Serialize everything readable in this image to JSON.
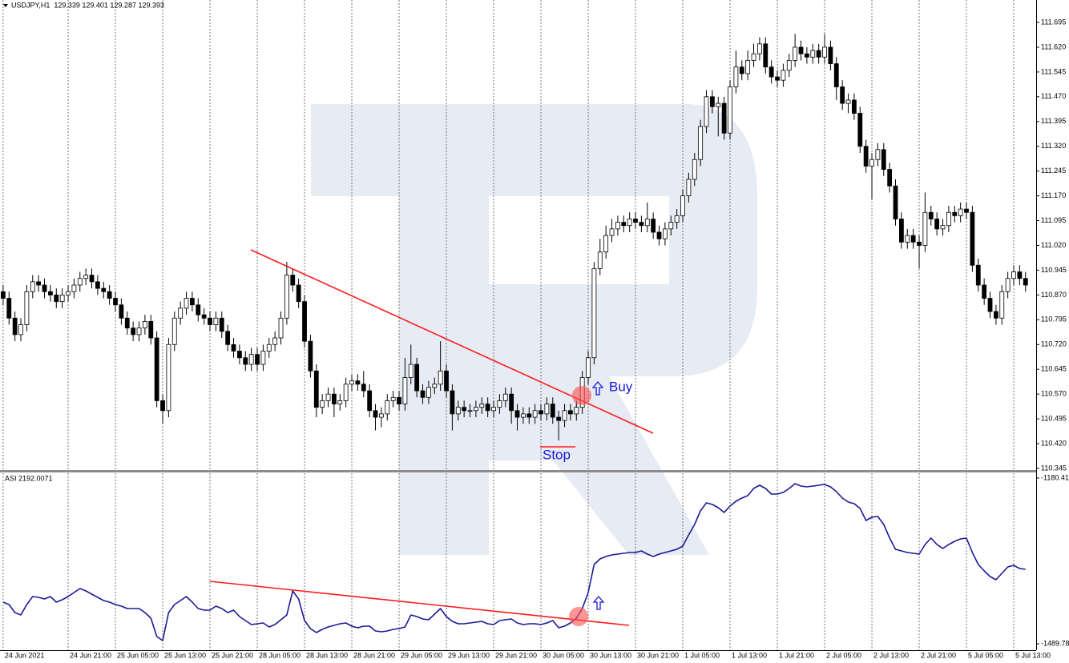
{
  "chart_data": [
    {
      "type": "candlestick",
      "title": "USDJPY,H1  129.339 129.401 129.287 129.393",
      "annotations": [
        "Buy",
        "Stop"
      ],
      "up_color": "#ffffff",
      "down_color": "#000000",
      "grid": true,
      "ylim": [
        110.345,
        111.695
      ],
      "yticks": [
        111.695,
        {
          "value": 111.62,
          "label": "111.620"
        },
        111.545,
        {
          "value": 111.47,
          "label": "111.470"
        },
        111.395,
        {
          "value": 111.32,
          "label": "111.320"
        },
        111.245,
        {
          "value": 111.17,
          "label": "111.170"
        },
        111.095,
        {
          "value": 111.02,
          "label": "111.020"
        },
        110.945,
        {
          "value": 110.87,
          "label": "110.870"
        },
        110.795,
        {
          "value": 110.72,
          "label": "110.720"
        },
        110.645,
        {
          "value": 110.57,
          "label": "110.570"
        },
        110.495,
        {
          "value": 110.42,
          "label": "110.420"
        },
        110.345
      ],
      "categories": [
        "24 Jun 2021",
        null,
        null,
        null,
        null,
        null,
        null,
        null,
        null,
        null,
        null,
        "24 Jun 21:00",
        null,
        null,
        null,
        null,
        null,
        null,
        null,
        "25 Jun 05:00",
        null,
        null,
        null,
        null,
        null,
        null,
        null,
        "25 Jun 13:00",
        null,
        null,
        null,
        null,
        null,
        null,
        null,
        "25 Jun 21:00",
        null,
        null,
        null,
        null,
        null,
        null,
        null,
        "28 Jun 05:00",
        null,
        null,
        null,
        null,
        null,
        null,
        null,
        "28 Jun 13:00",
        null,
        null,
        null,
        null,
        null,
        null,
        null,
        "28 Jun 21:00",
        null,
        null,
        null,
        null,
        null,
        null,
        null,
        "29 Jun 05:00",
        null,
        null,
        null,
        null,
        null,
        null,
        null,
        "29 Jun 13:00",
        null,
        null,
        null,
        null,
        null,
        null,
        null,
        "29 Jun 21:00",
        null,
        null,
        null,
        null,
        null,
        null,
        null,
        "30 Jun 05:00",
        null,
        null,
        null,
        null,
        null,
        null,
        null,
        "30 Jun 13:00",
        null,
        null,
        null,
        null,
        null,
        null,
        null,
        "30 Jun 21:00",
        null,
        null,
        null,
        null,
        null,
        null,
        null,
        "1 Jul 05:00",
        null,
        null,
        null,
        null,
        null,
        null,
        null,
        "1 Jul 13:00",
        null,
        null,
        null,
        null,
        null,
        null,
        null,
        "1 Jul 21:00",
        null,
        null,
        null,
        null,
        null,
        null,
        null,
        "2 Jul 05:00",
        null,
        null,
        null,
        null,
        null,
        null,
        null,
        "2 Jul 13:00",
        null,
        null,
        null,
        null,
        null,
        null,
        null,
        "2 Jul 21:00",
        null,
        null,
        null,
        null,
        null,
        null,
        null,
        "5 Jul 05:00",
        null,
        null,
        null,
        null,
        null,
        null,
        null,
        "5 Jul 13:00",
        null,
        null
      ],
      "open": [
        110.88,
        110.86,
        110.8,
        110.75,
        110.78,
        110.88,
        110.91,
        110.9,
        110.88,
        110.87,
        110.85,
        110.87,
        110.88,
        110.9,
        110.92,
        110.93,
        110.91,
        110.89,
        110.88,
        110.86,
        110.84,
        110.8,
        110.77,
        110.75,
        110.77,
        110.79,
        110.74,
        110.55,
        110.52,
        110.72,
        110.8,
        110.83,
        110.86,
        110.84,
        110.81,
        110.8,
        110.78,
        110.8,
        110.76,
        110.72,
        110.7,
        110.68,
        110.66,
        110.69,
        110.66,
        110.7,
        110.72,
        110.74,
        110.8,
        110.93,
        110.9,
        110.85,
        110.73,
        110.64,
        110.53,
        110.55,
        110.57,
        110.54,
        110.55,
        110.6,
        110.61,
        110.6,
        110.58,
        110.52,
        110.5,
        110.51,
        110.55,
        110.56,
        110.54,
        110.62,
        110.66,
        110.58,
        110.56,
        110.59,
        110.6,
        110.64,
        110.58,
        110.51,
        110.53,
        110.52,
        110.52,
        110.53,
        110.54,
        110.52,
        110.53,
        110.55,
        110.57,
        110.52,
        110.5,
        110.51,
        110.5,
        110.52,
        110.51,
        110.54,
        110.5,
        110.49,
        110.52,
        110.51,
        110.53,
        110.62,
        110.68,
        110.95,
        111.0,
        111.05,
        111.07,
        111.09,
        111.08,
        111.1,
        111.09,
        111.08,
        111.1,
        111.06,
        111.04,
        111.07,
        111.09,
        111.11,
        111.17,
        111.22,
        111.28,
        111.38,
        111.47,
        111.44,
        111.45,
        111.36,
        111.5,
        111.56,
        111.54,
        111.58,
        111.6,
        111.63,
        111.56,
        111.53,
        111.52,
        111.55,
        111.58,
        111.62,
        111.6,
        111.59,
        111.61,
        111.59,
        111.62,
        111.57,
        111.5,
        111.45,
        111.46,
        111.42,
        111.32,
        111.26,
        111.28,
        111.31,
        111.25,
        111.2,
        111.1,
        111.03,
        111.05,
        111.03,
        111.02,
        111.12,
        111.1,
        111.07,
        111.08,
        111.12,
        111.11,
        111.13,
        111.12,
        110.96,
        110.9,
        110.86,
        110.82,
        110.8,
        110.88,
        110.92,
        110.94,
        110.92
      ],
      "high": [
        110.9,
        110.88,
        110.82,
        110.8,
        110.9,
        110.93,
        110.93,
        110.92,
        110.9,
        110.89,
        110.89,
        110.9,
        110.92,
        110.94,
        110.95,
        110.95,
        110.93,
        110.91,
        110.9,
        110.88,
        110.86,
        110.82,
        110.79,
        110.79,
        110.81,
        110.81,
        110.76,
        110.57,
        110.74,
        110.82,
        110.85,
        110.88,
        110.88,
        110.86,
        110.83,
        110.82,
        110.82,
        110.82,
        110.78,
        110.74,
        110.72,
        110.7,
        110.71,
        110.71,
        110.72,
        110.74,
        110.76,
        110.82,
        110.97,
        110.95,
        110.92,
        110.87,
        110.75,
        110.66,
        110.57,
        110.59,
        110.59,
        110.57,
        110.62,
        110.63,
        110.63,
        110.64,
        110.6,
        110.54,
        110.53,
        110.57,
        110.58,
        110.58,
        110.68,
        110.72,
        110.68,
        110.6,
        110.61,
        110.62,
        110.73,
        110.66,
        110.6,
        110.55,
        110.55,
        110.54,
        110.55,
        110.56,
        110.56,
        110.55,
        110.57,
        110.59,
        110.59,
        110.54,
        110.53,
        110.53,
        110.54,
        110.54,
        110.56,
        110.56,
        110.52,
        110.54,
        110.54,
        110.55,
        110.64,
        110.7,
        110.97,
        111.04,
        111.08,
        111.1,
        111.11,
        111.11,
        111.12,
        111.12,
        111.11,
        111.15,
        111.12,
        111.08,
        111.09,
        111.11,
        111.13,
        111.19,
        111.24,
        111.3,
        111.4,
        111.49,
        111.49,
        111.47,
        111.47,
        111.52,
        111.61,
        111.58,
        111.61,
        111.63,
        111.65,
        111.65,
        111.58,
        111.55,
        111.57,
        111.6,
        111.66,
        111.64,
        111.62,
        111.63,
        111.63,
        111.66,
        111.64,
        111.59,
        111.52,
        111.48,
        111.48,
        111.44,
        111.34,
        111.3,
        111.33,
        111.33,
        111.27,
        111.22,
        111.12,
        111.07,
        111.07,
        111.05,
        111.18,
        111.14,
        111.12,
        111.1,
        111.14,
        111.14,
        111.15,
        111.15,
        111.14,
        110.98,
        110.92,
        110.88,
        110.84,
        110.9,
        110.94,
        110.96,
        110.96,
        110.94
      ],
      "low": [
        110.84,
        110.78,
        110.73,
        110.73,
        110.76,
        110.86,
        110.88,
        110.86,
        110.85,
        110.83,
        110.83,
        110.85,
        110.86,
        110.88,
        110.9,
        110.89,
        110.87,
        110.86,
        110.84,
        110.82,
        110.78,
        110.75,
        110.73,
        110.73,
        110.75,
        110.72,
        110.53,
        110.48,
        110.5,
        110.7,
        110.78,
        110.81,
        110.82,
        110.79,
        110.78,
        110.76,
        110.76,
        110.74,
        110.7,
        110.68,
        110.66,
        110.64,
        110.64,
        110.64,
        110.64,
        110.68,
        110.7,
        110.72,
        110.78,
        110.88,
        110.83,
        110.71,
        110.62,
        110.5,
        110.51,
        110.53,
        110.5,
        110.52,
        110.53,
        110.58,
        110.58,
        110.56,
        110.5,
        110.46,
        110.47,
        110.49,
        110.53,
        110.52,
        110.52,
        110.6,
        110.56,
        110.54,
        110.54,
        110.57,
        110.58,
        110.56,
        110.46,
        110.49,
        110.5,
        110.5,
        110.5,
        110.51,
        110.5,
        110.5,
        110.51,
        110.53,
        110.48,
        110.46,
        110.48,
        110.48,
        110.48,
        110.49,
        110.49,
        110.48,
        110.43,
        110.47,
        110.49,
        110.49,
        110.51,
        110.6,
        110.66,
        110.93,
        110.98,
        111.03,
        111.05,
        111.06,
        111.06,
        111.07,
        111.06,
        111.06,
        111.04,
        111.02,
        111.02,
        111.05,
        111.07,
        111.09,
        111.15,
        111.2,
        111.26,
        111.36,
        111.42,
        111.35,
        111.34,
        111.34,
        111.48,
        111.52,
        111.52,
        111.56,
        111.58,
        111.54,
        111.51,
        111.5,
        111.5,
        111.53,
        111.56,
        111.58,
        111.57,
        111.57,
        111.57,
        111.57,
        111.55,
        111.46,
        111.43,
        111.42,
        111.4,
        111.3,
        111.24,
        111.16,
        111.26,
        111.23,
        111.18,
        111.08,
        111.01,
        111.01,
        111.01,
        110.95,
        111.0,
        111.08,
        111.05,
        111.05,
        111.06,
        111.09,
        111.09,
        111.1,
        110.94,
        110.88,
        110.84,
        110.8,
        110.78,
        110.78,
        110.86,
        110.9,
        110.9,
        110.88
      ],
      "close": [
        110.86,
        110.8,
        110.75,
        110.78,
        110.88,
        110.91,
        110.9,
        110.88,
        110.87,
        110.85,
        110.87,
        110.88,
        110.9,
        110.92,
        110.93,
        110.91,
        110.89,
        110.88,
        110.86,
        110.84,
        110.8,
        110.77,
        110.75,
        110.77,
        110.79,
        110.74,
        110.55,
        110.52,
        110.72,
        110.8,
        110.83,
        110.86,
        110.84,
        110.81,
        110.8,
        110.78,
        110.8,
        110.76,
        110.72,
        110.7,
        110.68,
        110.66,
        110.69,
        110.66,
        110.7,
        110.72,
        110.74,
        110.8,
        110.93,
        110.9,
        110.85,
        110.73,
        110.64,
        110.53,
        110.55,
        110.57,
        110.54,
        110.55,
        110.6,
        110.61,
        110.6,
        110.58,
        110.52,
        110.5,
        110.51,
        110.55,
        110.56,
        110.54,
        110.62,
        110.66,
        110.58,
        110.56,
        110.59,
        110.6,
        110.64,
        110.58,
        110.51,
        110.53,
        110.52,
        110.52,
        110.53,
        110.54,
        110.52,
        110.53,
        110.55,
        110.57,
        110.52,
        110.5,
        110.51,
        110.5,
        110.52,
        110.51,
        110.54,
        110.5,
        110.49,
        110.52,
        110.51,
        110.53,
        110.62,
        110.68,
        110.95,
        111.0,
        111.05,
        111.07,
        111.09,
        111.08,
        111.1,
        111.09,
        111.08,
        111.1,
        111.06,
        111.04,
        111.07,
        111.09,
        111.11,
        111.17,
        111.22,
        111.28,
        111.38,
        111.47,
        111.44,
        111.45,
        111.36,
        111.5,
        111.56,
        111.54,
        111.58,
        111.6,
        111.63,
        111.56,
        111.53,
        111.52,
        111.55,
        111.58,
        111.62,
        111.6,
        111.59,
        111.61,
        111.59,
        111.62,
        111.57,
        111.5,
        111.45,
        111.46,
        111.42,
        111.32,
        111.26,
        111.28,
        111.31,
        111.25,
        111.2,
        111.1,
        111.03,
        111.05,
        111.03,
        111.02,
        111.12,
        111.1,
        111.07,
        111.08,
        111.12,
        111.11,
        111.13,
        111.12,
        110.96,
        110.9,
        110.86,
        110.82,
        110.8,
        110.88,
        110.92,
        110.94,
        110.92,
        110.9
      ]
    },
    {
      "type": "line",
      "title": "ASI 2192.0071",
      "color": "#1a1a96",
      "ylim": [
        -1489.788,
        -1180.413
      ],
      "yticks": [
        -1180.413,
        -1489.788
      ],
      "values": [
        -1412.1,
        -1416.6,
        -1431.5,
        -1436.0,
        -1416.6,
        -1401.6,
        -1403.1,
        -1406.1,
        -1401.6,
        -1412.1,
        -1407.6,
        -1401.6,
        -1394.1,
        -1386.7,
        -1391.2,
        -1397.1,
        -1403.1,
        -1409.1,
        -1412.1,
        -1416.6,
        -1419.6,
        -1424.0,
        -1424.0,
        -1424.0,
        -1431.5,
        -1442.0,
        -1476.3,
        -1483.8,
        -1431.5,
        -1416.6,
        -1409.1,
        -1401.6,
        -1412.1,
        -1424.0,
        -1427.0,
        -1427.0,
        -1419.6,
        -1424.0,
        -1431.5,
        -1427.0,
        -1439.0,
        -1446.5,
        -1453.9,
        -1452.4,
        -1450.9,
        -1458.4,
        -1453.9,
        -1445.0,
        -1436.0,
        -1391.2,
        -1406.1,
        -1446.5,
        -1461.4,
        -1468.9,
        -1462.9,
        -1458.4,
        -1455.4,
        -1452.4,
        -1450.9,
        -1456.9,
        -1459.9,
        -1456.9,
        -1456.9,
        -1465.9,
        -1467.4,
        -1465.9,
        -1462.9,
        -1461.4,
        -1458.4,
        -1436.0,
        -1439.0,
        -1443.5,
        -1445.0,
        -1434.5,
        -1424.0,
        -1439.0,
        -1447.9,
        -1452.4,
        -1452.4,
        -1450.9,
        -1449.4,
        -1447.9,
        -1452.4,
        -1453.9,
        -1446.5,
        -1445.0,
        -1443.5,
        -1450.9,
        -1453.9,
        -1452.4,
        -1452.4,
        -1453.9,
        -1450.9,
        -1446.5,
        -1459.9,
        -1456.9,
        -1450.9,
        -1442.0,
        -1424.0,
        -1394.1,
        -1341.8,
        -1331.4,
        -1326.9,
        -1323.9,
        -1322.4,
        -1320.9,
        -1319.4,
        -1319.4,
        -1316.4,
        -1322.4,
        -1326.9,
        -1322.4,
        -1319.4,
        -1316.4,
        -1313.4,
        -1307.5,
        -1286.5,
        -1267.1,
        -1241.7,
        -1226.7,
        -1229.7,
        -1235.7,
        -1244.7,
        -1232.7,
        -1223.8,
        -1217.8,
        -1213.3,
        -1199.8,
        -1193.9,
        -1199.8,
        -1210.3,
        -1210.3,
        -1207.3,
        -1199.8,
        -1190.9,
        -1195.4,
        -1196.9,
        -1195.4,
        -1193.9,
        -1192.4,
        -1196.9,
        -1205.8,
        -1217.8,
        -1225.3,
        -1228.2,
        -1237.2,
        -1259.6,
        -1253.7,
        -1252.2,
        -1267.1,
        -1292.5,
        -1313.4,
        -1316.4,
        -1319.4,
        -1320.9,
        -1322.4,
        -1304.5,
        -1292.5,
        -1304.5,
        -1311.9,
        -1304.5,
        -1298.5,
        -1294.0,
        -1292.5,
        -1319.4,
        -1341.8,
        -1353.8,
        -1364.3,
        -1370.2,
        -1358.3,
        -1346.3,
        -1343.3,
        -1349.3,
        -1350.8
      ]
    }
  ]
}
